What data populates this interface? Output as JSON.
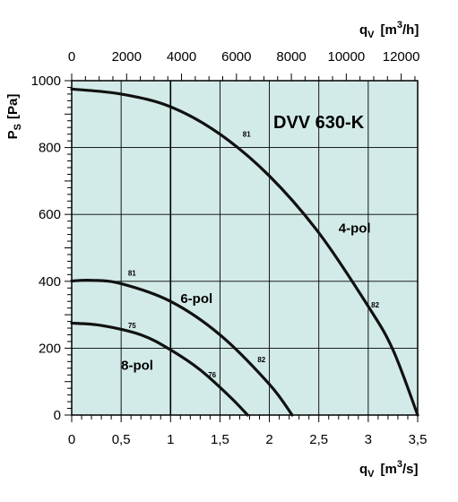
{
  "chart_data": {
    "type": "line",
    "title": "DVV 630-K",
    "xlabel_bottom": {
      "main": "q",
      "sub": "V",
      "unit_pre": "[m",
      "unit_sup": "3",
      "unit_post": "/s]"
    },
    "xlabel_top": {
      "main": "q",
      "sub": "V",
      "unit_pre": "[m",
      "unit_sup": "3",
      "unit_post": "/h]"
    },
    "ylabel": {
      "main": "P",
      "sub": "S",
      "unit": "[Pa]"
    },
    "xlim": [
      0,
      3.5
    ],
    "ylim": [
      0,
      1000
    ],
    "xlim_top": [
      0,
      12600
    ],
    "x_ticks": [
      "0",
      "0,5",
      "1",
      "1,5",
      "2",
      "2,5",
      "3",
      "3,5"
    ],
    "x_tick_values": [
      0,
      0.5,
      1,
      1.5,
      2,
      2.5,
      3,
      3.5
    ],
    "x_top_ticks": [
      "0",
      "2000",
      "4000",
      "6000",
      "8000",
      "10000",
      "12000"
    ],
    "x_top_tick_values": [
      0,
      2000,
      4000,
      6000,
      8000,
      10000,
      12000
    ],
    "y_ticks": [
      "0",
      "200",
      "400",
      "600",
      "800",
      "1000"
    ],
    "y_tick_values": [
      0,
      200,
      400,
      600,
      800,
      1000
    ],
    "grid": true,
    "background_color": "#d3ebe8",
    "series": [
      {
        "name": "4-pol",
        "x": [
          0,
          0.5,
          1.0,
          1.5,
          2.0,
          2.5,
          3.0,
          3.25,
          3.5
        ],
        "y": [
          975,
          960,
          922,
          840,
          715,
          545,
          325,
          195,
          0
        ]
      },
      {
        "name": "6-pol",
        "x": [
          0,
          0.2,
          0.5,
          1.0,
          1.5,
          2.0,
          2.23
        ],
        "y": [
          401,
          403,
          393,
          340,
          240,
          92,
          0
        ]
      },
      {
        "name": "8-pol",
        "x": [
          0,
          0.3,
          0.7,
          1.0,
          1.3,
          1.6,
          1.78
        ],
        "y": [
          275,
          268,
          240,
          195,
          135,
          55,
          0
        ]
      }
    ],
    "efficiency_labels": [
      {
        "text": "81",
        "x": 1.73,
        "y": 833
      },
      {
        "text": "82",
        "x": 3.03,
        "y": 322
      },
      {
        "text": "81",
        "x": 0.57,
        "y": 417
      },
      {
        "text": "82",
        "x": 1.88,
        "y": 158
      },
      {
        "text": "75",
        "x": 0.57,
        "y": 260
      },
      {
        "text": "76",
        "x": 1.38,
        "y": 112
      }
    ],
    "curve_labels": [
      {
        "text": "4-pol",
        "x": 2.7,
        "y": 545
      },
      {
        "text": "6-pol",
        "x": 1.1,
        "y": 335
      },
      {
        "text": "8-pol",
        "x": 0.5,
        "y": 135
      }
    ]
  }
}
